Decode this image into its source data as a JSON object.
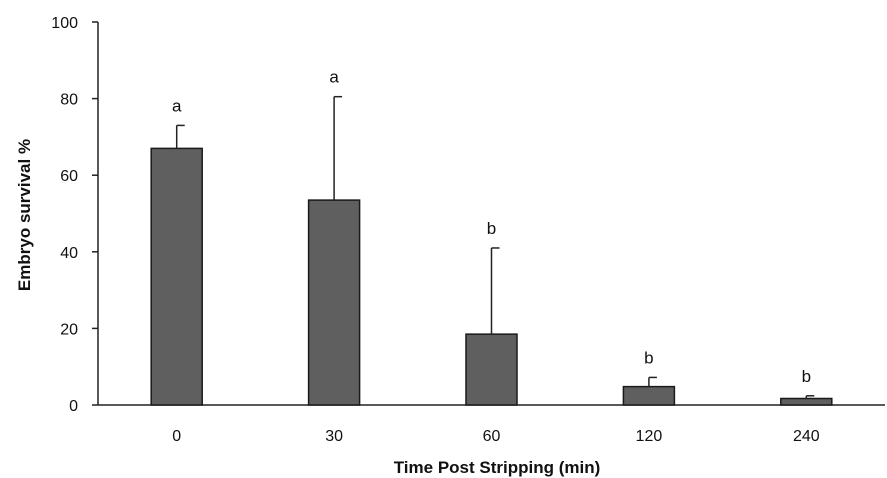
{
  "chart_data": {
    "type": "bar",
    "title": "",
    "xlabel": "Time Post Stripping (min)",
    "ylabel": "Embryo survival %",
    "ylim": [
      0,
      100
    ],
    "yticks": [
      0,
      20,
      40,
      60,
      80,
      100
    ],
    "categories": [
      "0",
      "30",
      "60",
      "120",
      "240"
    ],
    "values": [
      67,
      53.5,
      18.5,
      4.8,
      1.7
    ],
    "error_upper": [
      73,
      80.5,
      41,
      7.2,
      2.4
    ],
    "significance": [
      "a",
      "a",
      "b",
      "b",
      "b"
    ],
    "grid": false,
    "legend": "none",
    "bar_color": "#5f5f5f",
    "edge_color": "#1a1a1a"
  }
}
